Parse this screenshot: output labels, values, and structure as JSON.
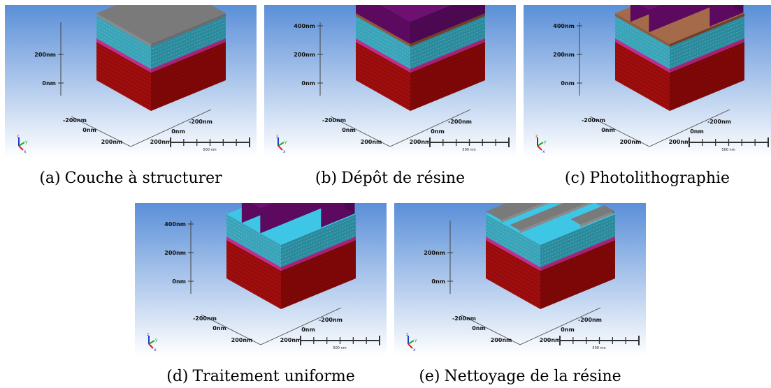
{
  "panels": [
    {
      "id": "a",
      "label": "(a)",
      "caption": "Couche à structurer",
      "stage": "layer",
      "z_ticks": [
        "0nm",
        "200nm"
      ],
      "xy_ticks": [
        "-200nm",
        "0nm",
        "200nm",
        "200nm",
        "0nm",
        "-200nm"
      ],
      "scale_label": "500 nm"
    },
    {
      "id": "b",
      "label": "(b)",
      "caption": "Dépôt de résine",
      "stage": "resist",
      "z_ticks": [
        "0nm",
        "200nm",
        "400nm"
      ],
      "xy_ticks": [
        "-200nm",
        "0nm",
        "200nm",
        "200nm",
        "0nm",
        "-200nm"
      ],
      "scale_label": "500 nm"
    },
    {
      "id": "c",
      "label": "(c)",
      "caption": "Photolithographie",
      "stage": "litho",
      "z_ticks": [
        "0nm",
        "200nm",
        "400nm"
      ],
      "xy_ticks": [
        "-200nm",
        "0nm",
        "200nm",
        "200nm",
        "0nm",
        "-200nm"
      ],
      "scale_label": "500 nm"
    },
    {
      "id": "d",
      "label": "(d)",
      "caption": "Traitement uniforme",
      "stage": "etch",
      "z_ticks": [
        "0nm",
        "200nm",
        "400nm"
      ],
      "xy_ticks": [
        "-200nm",
        "0nm",
        "200nm",
        "200nm",
        "0nm",
        "-200nm"
      ],
      "scale_label": "500 nm"
    },
    {
      "id": "e",
      "label": "(e)",
      "caption": "Nettoyage de la résine",
      "stage": "clean",
      "z_ticks": [
        "0nm",
        "200nm"
      ],
      "xy_ticks": [
        "-200nm",
        "0nm",
        "200nm",
        "200nm",
        "0nm",
        "-200nm"
      ],
      "scale_label": "500 nm"
    }
  ],
  "axis_letters": {
    "z": "z",
    "y": "y",
    "x": "x"
  },
  "colors": {
    "bg_top": "#5a8fd8",
    "bg_bottom": "#ffffff",
    "substrate_front": "#9e0e0e",
    "substrate_side": "#7e0808",
    "magenta_line": "#c42a8a",
    "layer_front": "#3aa3b8",
    "layer_side": "#2b8a9c",
    "gray_top": "#7a7a7a",
    "resist_top": "#6e0f72",
    "resist_front": "#5c0a60",
    "resist_side": "#4c0850",
    "cyan_exposed": "#3ec6e6"
  }
}
